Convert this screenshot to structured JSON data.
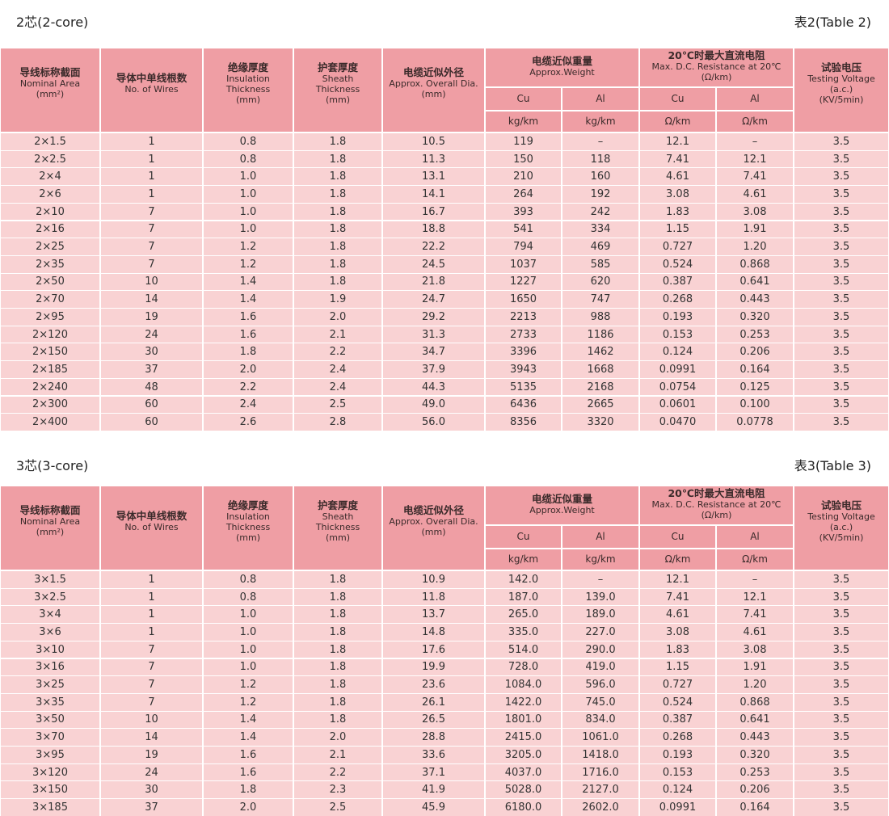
{
  "sections": [
    {
      "title": "2芯(2-core)",
      "table_label": "表2(Table 2)",
      "header": [
        {
          "lines": [
            "导线标称截面",
            "Nominal Area",
            "(mm²)"
          ]
        },
        {
          "lines": [
            "导体中单线根数",
            "No. of Wires"
          ]
        },
        {
          "lines": [
            "绝缘厚度",
            "Insulation",
            "Thickness",
            "(mm)"
          ]
        },
        {
          "lines": [
            "护套厚度",
            "Sheath",
            "Thickness",
            "(mm)"
          ]
        },
        {
          "lines": [
            "电缆近似外径",
            "Approx. Overall Dia.",
            "(mm)"
          ]
        },
        {
          "lines": [
            "电缆近似重量",
            "Approx.Weight"
          ],
          "sub": [
            "Cu",
            "Al"
          ],
          "units": [
            "kg/km",
            "kg/km"
          ]
        },
        {
          "lines": [
            "20℃时最大直流电阻",
            "Max. D.C. Resistance at 20℃",
            "(Ω/km)"
          ],
          "sub": [
            "Cu",
            "Al"
          ],
          "units": [
            "Ω/km",
            "Ω/km"
          ]
        },
        {
          "lines": [
            "试验电压",
            "Testing Voltage",
            "(a.c.)",
            "(KV/5min)"
          ]
        }
      ],
      "rows": [
        [
          "2×1.5",
          "1",
          "0.8",
          "1.8",
          "10.5",
          "119",
          "–",
          "12.1",
          "–",
          "3.5"
        ],
        [
          "2×2.5",
          "1",
          "0.8",
          "1.8",
          "11.3",
          "150",
          "118",
          "7.41",
          "12.1",
          "3.5"
        ],
        [
          "2×4",
          "1",
          "1.0",
          "1.8",
          "13.1",
          "210",
          "160",
          "4.61",
          "7.41",
          "3.5"
        ],
        [
          "2×6",
          "1",
          "1.0",
          "1.8",
          "14.1",
          "264",
          "192",
          "3.08",
          "4.61",
          "3.5"
        ],
        [
          "2×10",
          "7",
          "1.0",
          "1.8",
          "16.7",
          "393",
          "242",
          "1.83",
          "3.08",
          "3.5"
        ],
        [
          "2×16",
          "7",
          "1.0",
          "1.8",
          "18.8",
          "541",
          "334",
          "1.15",
          "1.91",
          "3.5"
        ],
        [
          "2×25",
          "7",
          "1.2",
          "1.8",
          "22.2",
          "794",
          "469",
          "0.727",
          "1.20",
          "3.5"
        ],
        [
          "2×35",
          "7",
          "1.2",
          "1.8",
          "24.5",
          "1037",
          "585",
          "0.524",
          "0.868",
          "3.5"
        ],
        [
          "2×50",
          "10",
          "1.4",
          "1.8",
          "21.8",
          "1227",
          "620",
          "0.387",
          "0.641",
          "3.5"
        ],
        [
          "2×70",
          "14",
          "1.4",
          "1.9",
          "24.7",
          "1650",
          "747",
          "0.268",
          "0.443",
          "3.5"
        ],
        [
          "2×95",
          "19",
          "1.6",
          "2.0",
          "29.2",
          "2213",
          "988",
          "0.193",
          "0.320",
          "3.5"
        ],
        [
          "2×120",
          "24",
          "1.6",
          "2.1",
          "31.3",
          "2733",
          "1186",
          "0.153",
          "0.253",
          "3.5"
        ],
        [
          "2×150",
          "30",
          "1.8",
          "2.2",
          "34.7",
          "3396",
          "1462",
          "0.124",
          "0.206",
          "3.5"
        ],
        [
          "2×185",
          "37",
          "2.0",
          "2.4",
          "37.9",
          "3943",
          "1668",
          "0.0991",
          "0.164",
          "3.5"
        ],
        [
          "2×240",
          "48",
          "2.2",
          "2.4",
          "44.3",
          "5135",
          "2168",
          "0.0754",
          "0.125",
          "3.5"
        ],
        [
          "2×300",
          "60",
          "2.4",
          "2.5",
          "49.0",
          "6436",
          "2665",
          "0.0601",
          "0.100",
          "3.5"
        ],
        [
          "2×400",
          "60",
          "2.6",
          "2.8",
          "56.0",
          "8356",
          "3320",
          "0.0470",
          "0.0778",
          "3.5"
        ]
      ]
    },
    {
      "title": "3芯(3-core)",
      "table_label": "表3(Table 3)",
      "header": [
        {
          "lines": [
            "导线标称截面",
            "Nominal Area",
            "(mm²)"
          ]
        },
        {
          "lines": [
            "导体中单线根数",
            "No. of Wires"
          ]
        },
        {
          "lines": [
            "绝缘厚度",
            "Insulation",
            "Thickness",
            "(mm)"
          ]
        },
        {
          "lines": [
            "护套厚度",
            "Sheath",
            "Thickness",
            "(mm)"
          ]
        },
        {
          "lines": [
            "电缆近似外径",
            "Approx. Overall Dia.",
            "(mm)"
          ]
        },
        {
          "lines": [
            "电缆近似重量",
            "Approx.Weight"
          ],
          "sub": [
            "Cu",
            "Al"
          ],
          "units": [
            "kg/km",
            "kg/km"
          ]
        },
        {
          "lines": [
            "20℃时最大直流电阻",
            "Max. D.C. Resistance at 20℃",
            "(Ω/km)"
          ],
          "sub": [
            "Cu",
            "Al"
          ],
          "units": [
            "Ω/km",
            "Ω/km"
          ]
        },
        {
          "lines": [
            "试验电压",
            "Testing Voltage",
            "(a.c.)",
            "(KV/5min)"
          ]
        }
      ],
      "rows": [
        [
          "3×1.5",
          "1",
          "0.8",
          "1.8",
          "10.9",
          "142.0",
          "–",
          "12.1",
          "–",
          "3.5"
        ],
        [
          "3×2.5",
          "1",
          "0.8",
          "1.8",
          "11.8",
          "187.0",
          "139.0",
          "7.41",
          "12.1",
          "3.5"
        ],
        [
          "3×4",
          "1",
          "1.0",
          "1.8",
          "13.7",
          "265.0",
          "189.0",
          "4.61",
          "7.41",
          "3.5"
        ],
        [
          "3×6",
          "1",
          "1.0",
          "1.8",
          "14.8",
          "335.0",
          "227.0",
          "3.08",
          "4.61",
          "3.5"
        ],
        [
          "3×10",
          "7",
          "1.0",
          "1.8",
          "17.6",
          "514.0",
          "290.0",
          "1.83",
          "3.08",
          "3.5"
        ],
        [
          "3×16",
          "7",
          "1.0",
          "1.8",
          "19.9",
          "728.0",
          "419.0",
          "1.15",
          "1.91",
          "3.5"
        ],
        [
          "3×25",
          "7",
          "1.2",
          "1.8",
          "23.6",
          "1084.0",
          "596.0",
          "0.727",
          "1.20",
          "3.5"
        ],
        [
          "3×35",
          "7",
          "1.2",
          "1.8",
          "26.1",
          "1422.0",
          "745.0",
          "0.524",
          "0.868",
          "3.5"
        ],
        [
          "3×50",
          "10",
          "1.4",
          "1.8",
          "26.5",
          "1801.0",
          "834.0",
          "0.387",
          "0.641",
          "3.5"
        ],
        [
          "3×70",
          "14",
          "1.4",
          "2.0",
          "28.8",
          "2415.0",
          "1061.0",
          "0.268",
          "0.443",
          "3.5"
        ],
        [
          "3×95",
          "19",
          "1.6",
          "2.1",
          "33.6",
          "3205.0",
          "1418.0",
          "0.193",
          "0.320",
          "3.5"
        ],
        [
          "3×120",
          "24",
          "1.6",
          "2.2",
          "37.1",
          "4037.0",
          "1716.0",
          "0.153",
          "0.253",
          "3.5"
        ],
        [
          "3×150",
          "30",
          "1.8",
          "2.3",
          "41.9",
          "5028.0",
          "2127.0",
          "0.124",
          "0.206",
          "3.5"
        ],
        [
          "3×185",
          "37",
          "2.0",
          "2.5",
          "45.9",
          "6180.0",
          "2602.0",
          "0.0991",
          "0.164",
          "3.5"
        ]
      ]
    }
  ]
}
